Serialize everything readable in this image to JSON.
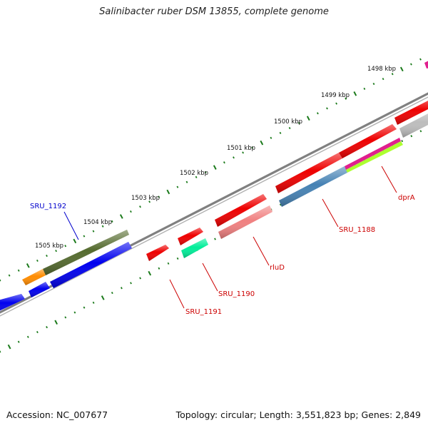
{
  "title": "Salinibacter ruber DSM 13855, complete genome",
  "footer": {
    "accession": "Accession: NC_007677",
    "summary": "Topology: circular; Length: 3,551,823 bp; Genes: 2,849"
  },
  "scale_labels": [
    "1498 kbp",
    "1499 kbp",
    "1500 kbp",
    "1501 kbp",
    "1502 kbp",
    "1503 kbp",
    "1504 kbp",
    "1505 kbp"
  ],
  "gene_labels": [
    {
      "text": "SRU_1192",
      "color": "#0000cc"
    },
    {
      "text": "SRU_1191",
      "color": "#cc0000"
    },
    {
      "text": "SRU_1190",
      "color": "#cc0000"
    },
    {
      "text": "rluD",
      "color": "#cc0000"
    },
    {
      "text": "SRU_1188",
      "color": "#cc0000"
    },
    {
      "text": "dprA",
      "color": "#cc0000"
    }
  ],
  "colors": {
    "backbone": "#808080",
    "tick": "#1b7a1b",
    "forward_gene": "#ee0000",
    "reverse_gene": "#0000ee"
  }
}
